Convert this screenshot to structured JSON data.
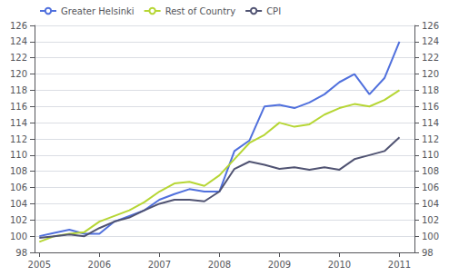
{
  "chart_data": {
    "type": "line",
    "x": [
      2005.0,
      2005.25,
      2005.5,
      2005.75,
      2006.0,
      2006.25,
      2006.5,
      2006.75,
      2007.0,
      2007.25,
      2007.5,
      2007.75,
      2008.0,
      2008.25,
      2008.5,
      2008.75,
      2009.0,
      2009.25,
      2009.5,
      2009.75,
      2010.0,
      2010.25,
      2010.5,
      2010.75,
      2011.0
    ],
    "series": [
      {
        "name": "Greater Helsinki",
        "values": [
          100.0,
          100.4,
          100.8,
          100.3,
          100.3,
          101.8,
          102.5,
          103.2,
          104.5,
          105.2,
          105.8,
          105.5,
          105.5,
          110.5,
          111.8,
          116.0,
          116.2,
          115.8,
          116.5,
          117.5,
          119.0,
          120.0,
          117.5,
          119.5,
          124.0
        ]
      },
      {
        "name": "Rest of Country",
        "values": [
          99.3,
          100.0,
          100.3,
          100.5,
          101.8,
          102.5,
          103.2,
          104.2,
          105.5,
          106.5,
          106.7,
          106.2,
          107.5,
          109.5,
          111.5,
          112.5,
          114.0,
          113.5,
          113.8,
          115.0,
          115.8,
          116.3,
          116.0,
          116.8,
          118.0
        ]
      },
      {
        "name": "CPI",
        "values": [
          99.8,
          100.0,
          100.2,
          100.0,
          101.0,
          101.8,
          102.3,
          103.2,
          104.0,
          104.5,
          104.5,
          104.3,
          105.5,
          108.3,
          109.2,
          108.8,
          108.3,
          108.5,
          108.2,
          108.5,
          108.2,
          109.5,
          110.0,
          110.5,
          112.2
        ]
      }
    ],
    "xlim": [
      2004.92,
      2011.25
    ],
    "xticks": [
      2005,
      2006,
      2007,
      2008,
      2009,
      2010,
      2011
    ],
    "ylim": [
      98,
      126
    ],
    "yticks": [
      98,
      100,
      102,
      104,
      106,
      108,
      110,
      112,
      114,
      116,
      118,
      120,
      122,
      124,
      126
    ],
    "y2lim": [
      98,
      126
    ],
    "y2ticks": [
      98,
      100,
      102,
      104,
      106,
      108,
      110,
      112,
      114,
      116,
      118,
      120,
      122,
      124,
      126
    ],
    "grid": true,
    "legend": "upper left"
  }
}
